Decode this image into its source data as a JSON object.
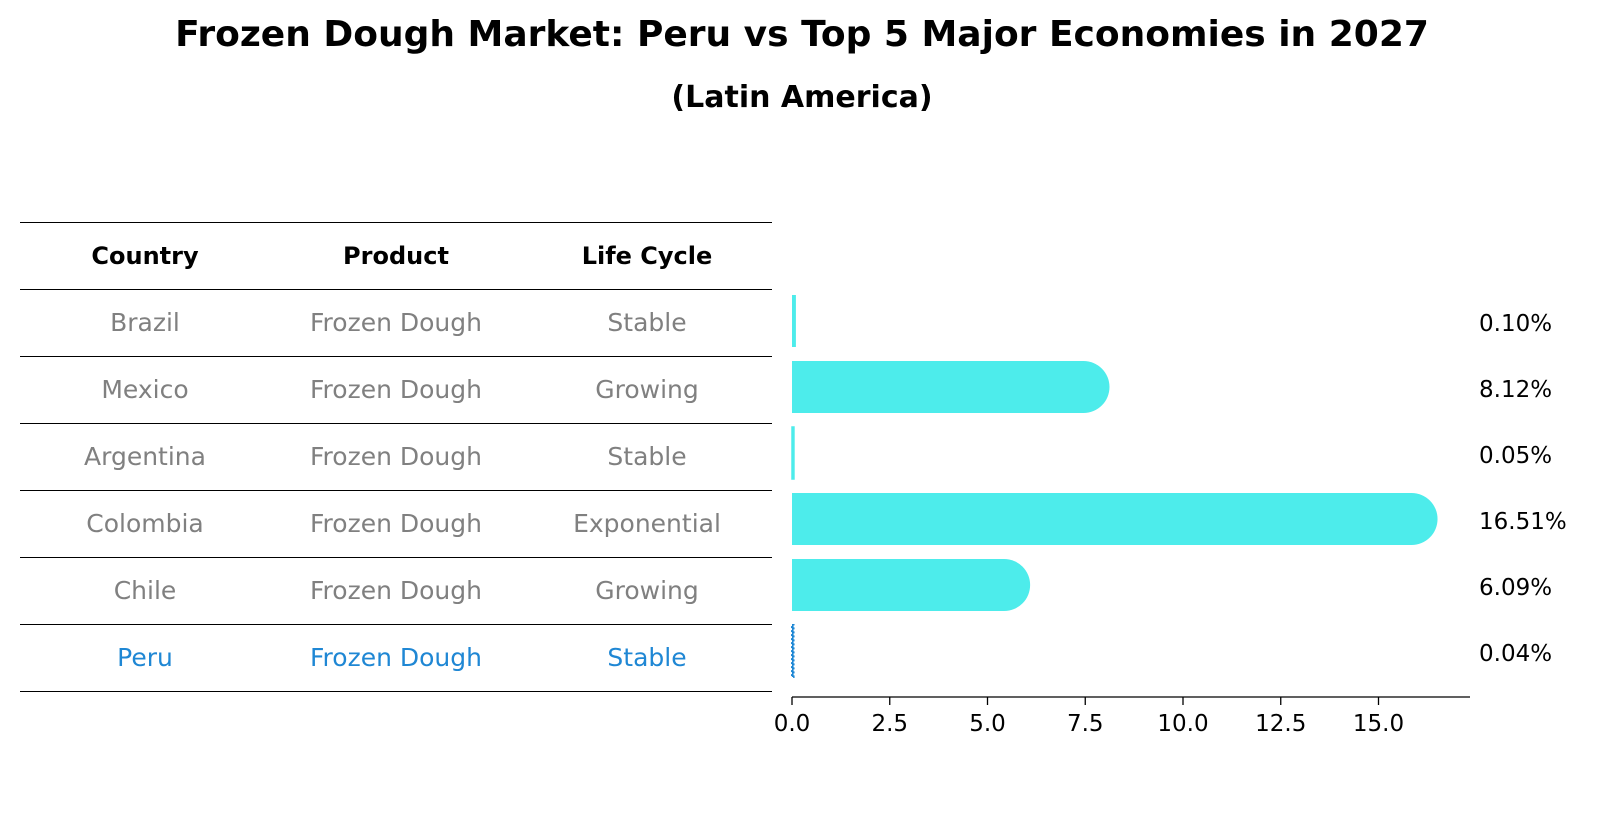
{
  "title": "Frozen Dough Market: Peru vs Top 5 Major Economies in 2027",
  "subtitle": "(Latin America)",
  "table": {
    "headers": [
      "Country",
      "Product",
      "Life Cycle"
    ],
    "rows": [
      [
        "Brazil",
        "Frozen Dough",
        "Stable"
      ],
      [
        "Mexico",
        "Frozen Dough",
        "Growing"
      ],
      [
        "Argentina",
        "Frozen Dough",
        "Stable"
      ],
      [
        "Colombia",
        "Frozen Dough",
        "Exponential"
      ],
      [
        "Chile",
        "Frozen Dough",
        "Growing"
      ],
      [
        "Peru",
        "Frozen Dough",
        "Stable"
      ]
    ],
    "highlight_row": "Peru"
  },
  "chart_data": {
    "type": "bar",
    "orientation": "horizontal",
    "categories": [
      "Brazil",
      "Mexico",
      "Argentina",
      "Colombia",
      "Chile",
      "Peru"
    ],
    "values": [
      0.1,
      8.12,
      0.05,
      16.51,
      6.09,
      0.04
    ],
    "value_labels": [
      "0.10%",
      "8.12%",
      "0.05%",
      "16.51%",
      "6.09%",
      "0.04%"
    ],
    "xlim": [
      0,
      17.4
    ],
    "xticks": [
      0.0,
      2.5,
      5.0,
      7.5,
      10.0,
      12.5,
      15.0
    ],
    "xtick_labels": [
      "0.0",
      "2.5",
      "5.0",
      "7.5",
      "10.0",
      "12.5",
      "15.0"
    ],
    "bar_color": "#4deceb",
    "highlight_color": "#1f87d4",
    "grid": false
  }
}
